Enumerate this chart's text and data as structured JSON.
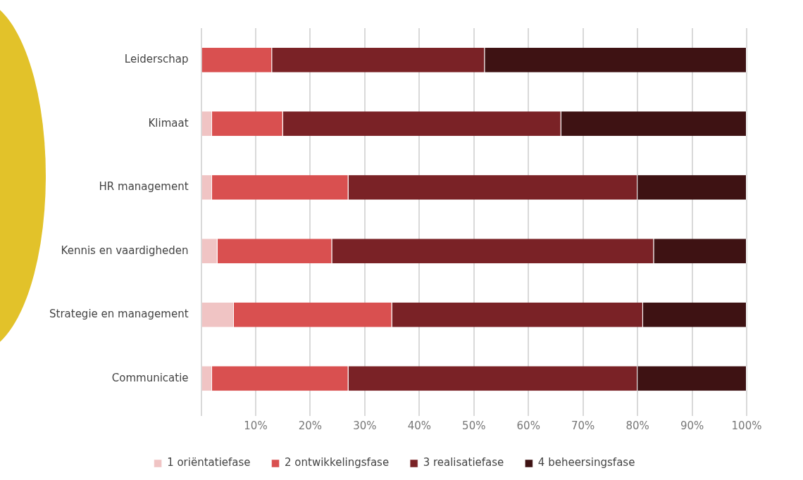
{
  "chart_data": {
    "type": "bar",
    "orientation": "horizontal",
    "stacked": true,
    "categories": [
      "Leiderschap",
      "Klimaat",
      "HR management",
      "Kennis en vaardigheden",
      "Strategie en management",
      "Communicatie"
    ],
    "series": [
      {
        "name": "1 oriëntatiefase",
        "color": "#f0c4c4",
        "values": [
          0,
          2,
          2,
          3,
          6,
          2
        ]
      },
      {
        "name": "2 ontwikkelingsfase",
        "color": "#d95050",
        "values": [
          13,
          13,
          25,
          21,
          29,
          25
        ]
      },
      {
        "name": "3 realisatiefase",
        "color": "#7a2226",
        "values": [
          39,
          51,
          53,
          59,
          46,
          53
        ]
      },
      {
        "name": "4 beheersingsfase",
        "color": "#3e1213",
        "values": [
          48,
          34,
          20,
          17,
          19,
          20
        ]
      }
    ],
    "xlim": [
      0,
      100
    ],
    "xticks": [
      {
        "value": 0,
        "label": null
      },
      {
        "value": 10,
        "label": "10%"
      },
      {
        "value": 20,
        "label": "20%"
      },
      {
        "value": 30,
        "label": "30%"
      },
      {
        "value": 40,
        "label": "40%"
      },
      {
        "value": 50,
        "label": "50%"
      },
      {
        "value": 60,
        "label": "60%"
      },
      {
        "value": 70,
        "label": "70%"
      },
      {
        "value": 80,
        "label": "80%"
      },
      {
        "value": 90,
        "label": "90%"
      },
      {
        "value": 100,
        "label": "100%"
      }
    ],
    "grid": "x",
    "legend": "bottom"
  }
}
